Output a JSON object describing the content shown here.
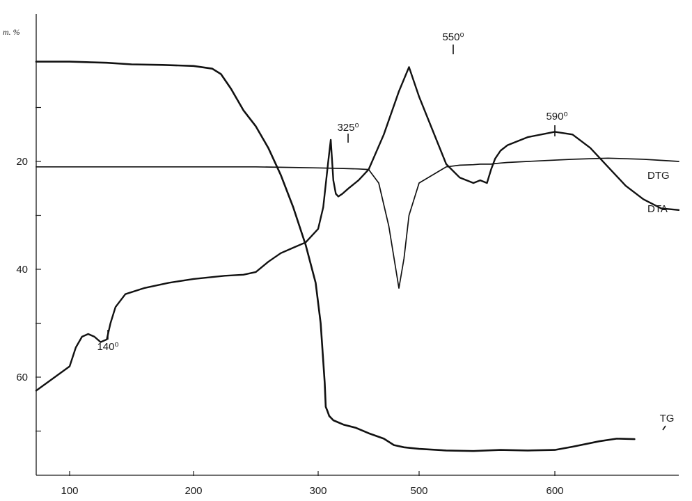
{
  "chart_data": {
    "type": "line",
    "title": "",
    "xlabel": "",
    "ylabel": "m. %",
    "x_tick_labels": [
      "100",
      "200",
      "300",
      "500",
      "600"
    ],
    "y_tick_labels": [
      "20",
      "40",
      "60"
    ],
    "x_axis_note": "tick labels are read from the image; the spacing is not linear (300 → 500 spans only ~145 px, so values between 300 and 500 are approximate)",
    "ylim": [
      0,
      80
    ],
    "y_inverted": true,
    "grid": false,
    "series": [
      {
        "name": "TG",
        "x": [
          72,
          100,
          130,
          150,
          175,
          200,
          215,
          222,
          230,
          240,
          250,
          260,
          270,
          280,
          290,
          298,
          305,
          310,
          313,
          315,
          318,
          322,
          330,
          350,
          375,
          400,
          430,
          450,
          470,
          500,
          520,
          540,
          560,
          580,
          600,
          620,
          650,
          670,
          690
        ],
        "values": [
          1.5,
          1.5,
          1.7,
          2.0,
          2.1,
          2.3,
          2.8,
          3.8,
          6.5,
          10.5,
          13.5,
          17.5,
          22.5,
          28.5,
          35.5,
          42.5,
          50.0,
          57.0,
          61.0,
          65.5,
          66.2,
          67.2,
          68.0,
          68.8,
          69.4,
          70.4,
          71.4,
          72.6,
          73.0,
          73.3,
          73.6,
          73.7,
          73.5,
          73.6,
          73.5,
          72.9,
          71.9,
          71.4,
          71.5
        ]
      },
      {
        "name": "DTA",
        "x": [
          72,
          100,
          105,
          110,
          115,
          120,
          125,
          130,
          133,
          137,
          145,
          160,
          180,
          200,
          225,
          240,
          250,
          260,
          270,
          280,
          290,
          300,
          310,
          320,
          325,
          327,
          330,
          335,
          340,
          348,
          360,
          380,
          400,
          430,
          460,
          480,
          500,
          520,
          530,
          540,
          545,
          550,
          553,
          556,
          560,
          565,
          580,
          600,
          620,
          640,
          660,
          680,
          700,
          720,
          740
        ],
        "values": [
          62.5,
          58.0,
          54.5,
          52.5,
          52.0,
          52.5,
          53.5,
          53.0,
          50.0,
          47.0,
          44.6,
          43.5,
          42.5,
          41.8,
          41.2,
          41.0,
          40.5,
          38.6,
          37.0,
          36.0,
          35.0,
          32.5,
          28.5,
          20.0,
          16.0,
          19.0,
          23.5,
          26.0,
          26.5,
          26.0,
          25.0,
          23.5,
          21.5,
          15.0,
          7.0,
          2.5,
          8.0,
          20.5,
          23.0,
          24.0,
          23.5,
          24.0,
          21.5,
          19.5,
          18.0,
          17.0,
          15.5,
          14.5,
          15.0,
          17.5,
          21.0,
          24.5,
          27.0,
          28.7,
          29.0
        ]
      },
      {
        "name": "DTG",
        "x": [
          72,
          100,
          150,
          200,
          250,
          300,
          350,
          380,
          400,
          420,
          440,
          460,
          470,
          480,
          500,
          520,
          530,
          540,
          545,
          550,
          553,
          556,
          560,
          565,
          580,
          620,
          660,
          700,
          740
        ],
        "values": [
          21.0,
          21.0,
          21.0,
          21.0,
          21.0,
          21.2,
          21.3,
          21.4,
          21.5,
          24.0,
          32.0,
          43.5,
          38.0,
          30.0,
          24.0,
          21.0,
          20.7,
          20.6,
          20.5,
          20.5,
          20.5,
          20.4,
          20.3,
          20.2,
          20.0,
          19.6,
          19.4,
          19.6,
          20.0
        ]
      }
    ],
    "annotations": [
      {
        "text": "140⁰",
        "x": 130,
        "y": 53.0
      },
      {
        "text": "325⁰",
        "x": 325,
        "y": 16.0
      },
      {
        "text": "550⁰",
        "x": 480,
        "y": 2.5
      },
      {
        "text": "590⁰",
        "x": 580,
        "y": 15.5
      }
    ]
  }
}
